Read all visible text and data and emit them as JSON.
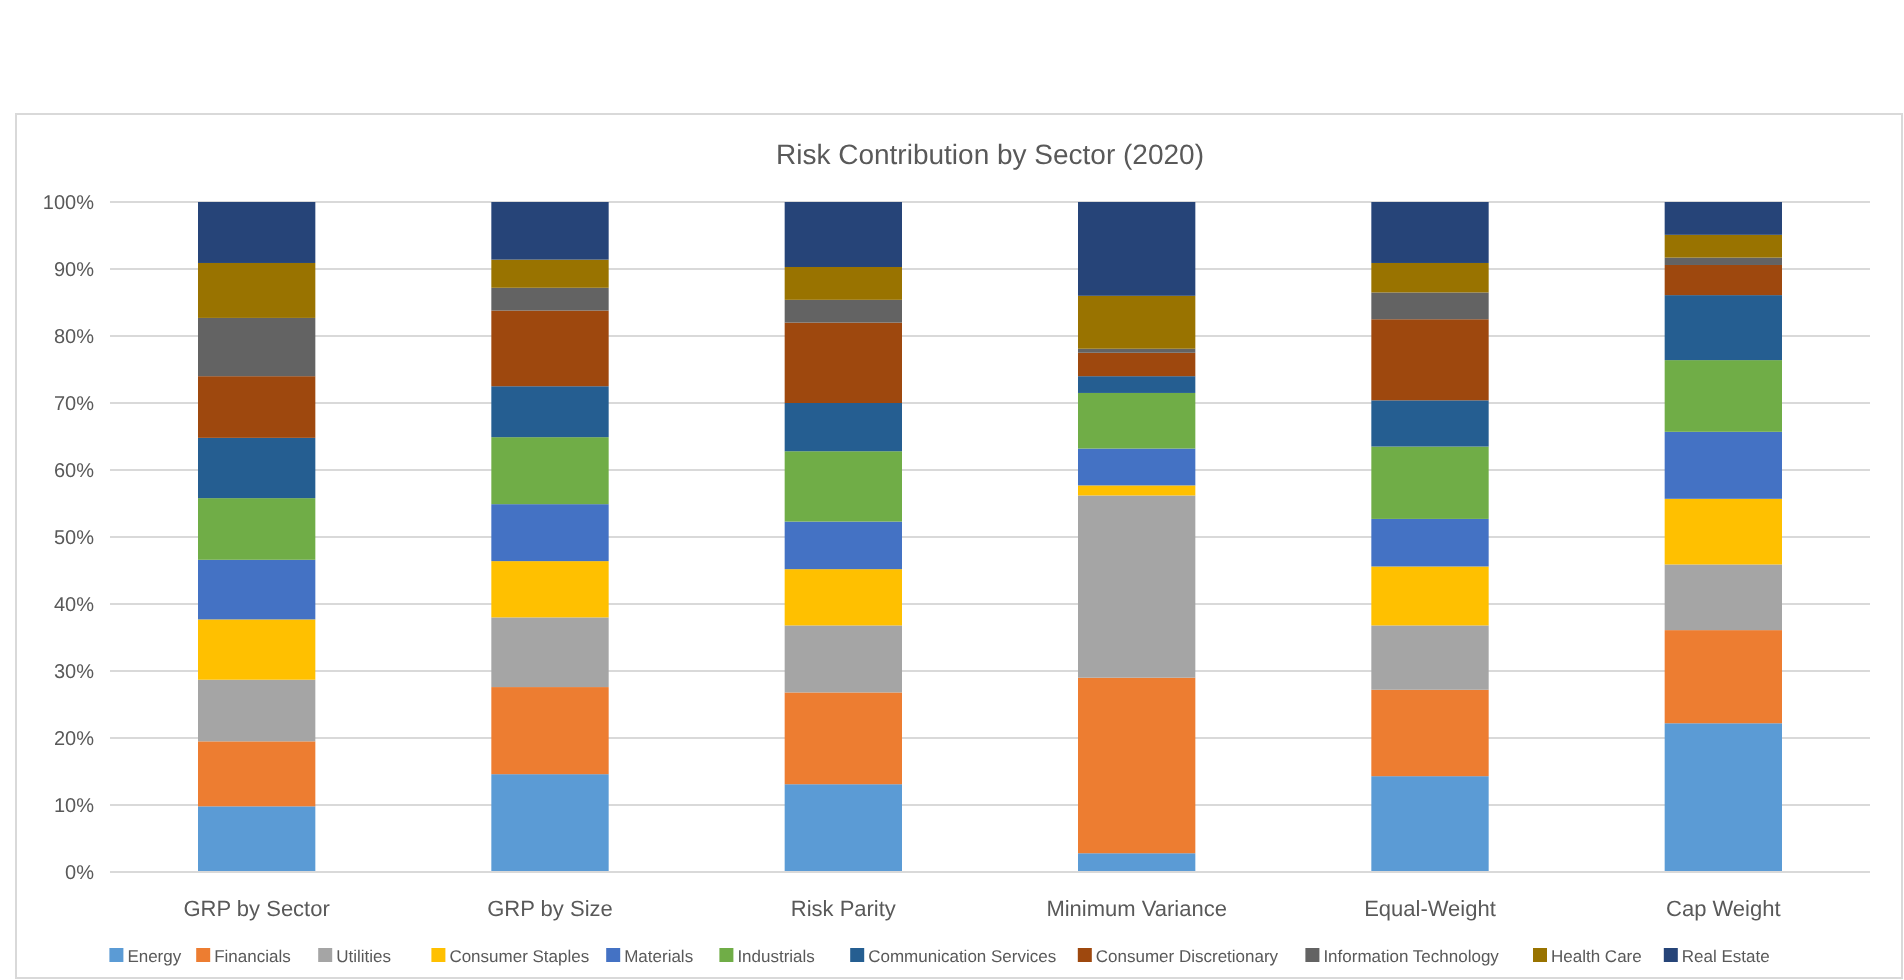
{
  "chart_data": {
    "type": "bar",
    "title": "Risk Contribution by Sector (2020)",
    "stacked": true,
    "grid": "y",
    "legend": "bottom",
    "categories": [
      "GRP by Sector",
      "GRP by Size",
      "Risk Parity",
      "Minimum Variance",
      "Equal-Weight",
      "Cap Weight"
    ],
    "ylim": [
      0,
      100
    ],
    "yticks": [
      {
        "value": 0,
        "label": "0%"
      },
      {
        "value": 10,
        "label": "10%"
      },
      {
        "value": 20,
        "label": "20%"
      },
      {
        "value": 30,
        "label": "30%"
      },
      {
        "value": 40,
        "label": "40%"
      },
      {
        "value": 50,
        "label": "50%"
      },
      {
        "value": 60,
        "label": "60%"
      },
      {
        "value": 70,
        "label": "70%"
      },
      {
        "value": 80,
        "label": "80%"
      },
      {
        "value": 90,
        "label": "90%"
      },
      {
        "value": 100,
        "label": "100%"
      }
    ],
    "series": [
      {
        "name": "Energy",
        "color": "#5b9bd5",
        "values": [
          9.8,
          14.6,
          13.1,
          2.8,
          14.3,
          22.2
        ]
      },
      {
        "name": "Financials",
        "color": "#ed7d31",
        "values": [
          9.7,
          13.0,
          13.7,
          26.2,
          12.9,
          13.9
        ]
      },
      {
        "name": "Utilities",
        "color": "#a5a5a5",
        "values": [
          9.2,
          10.4,
          10.0,
          27.2,
          9.6,
          9.8
        ]
      },
      {
        "name": "Consumer Staples",
        "color": "#ffc000",
        "values": [
          9.0,
          8.4,
          8.4,
          1.5,
          8.8,
          9.8
        ]
      },
      {
        "name": "Materials",
        "color": "#4472c4",
        "values": [
          8.9,
          8.5,
          7.1,
          5.5,
          7.1,
          10.0
        ]
      },
      {
        "name": "Industrials",
        "color": "#70ad47",
        "values": [
          9.2,
          10.0,
          10.5,
          8.3,
          10.8,
          10.7
        ]
      },
      {
        "name": "Communication Services",
        "color": "#255e91",
        "values": [
          9.0,
          7.6,
          7.2,
          2.5,
          6.9,
          9.7
        ]
      },
      {
        "name": "Consumer Discretionary",
        "color": "#9e480e",
        "values": [
          9.2,
          11.3,
          12.0,
          3.5,
          12.1,
          4.5
        ]
      },
      {
        "name": "Information Technology",
        "color": "#636363",
        "values": [
          8.7,
          3.4,
          3.4,
          0.6,
          4.0,
          1.1
        ]
      },
      {
        "name": "Health Care",
        "color": "#997300",
        "values": [
          8.2,
          4.2,
          4.9,
          7.9,
          4.4,
          3.4
        ]
      },
      {
        "name": "Real Estate",
        "color": "#264478",
        "values": [
          9.1,
          8.6,
          9.7,
          14.0,
          9.1,
          4.9
        ]
      }
    ]
  }
}
